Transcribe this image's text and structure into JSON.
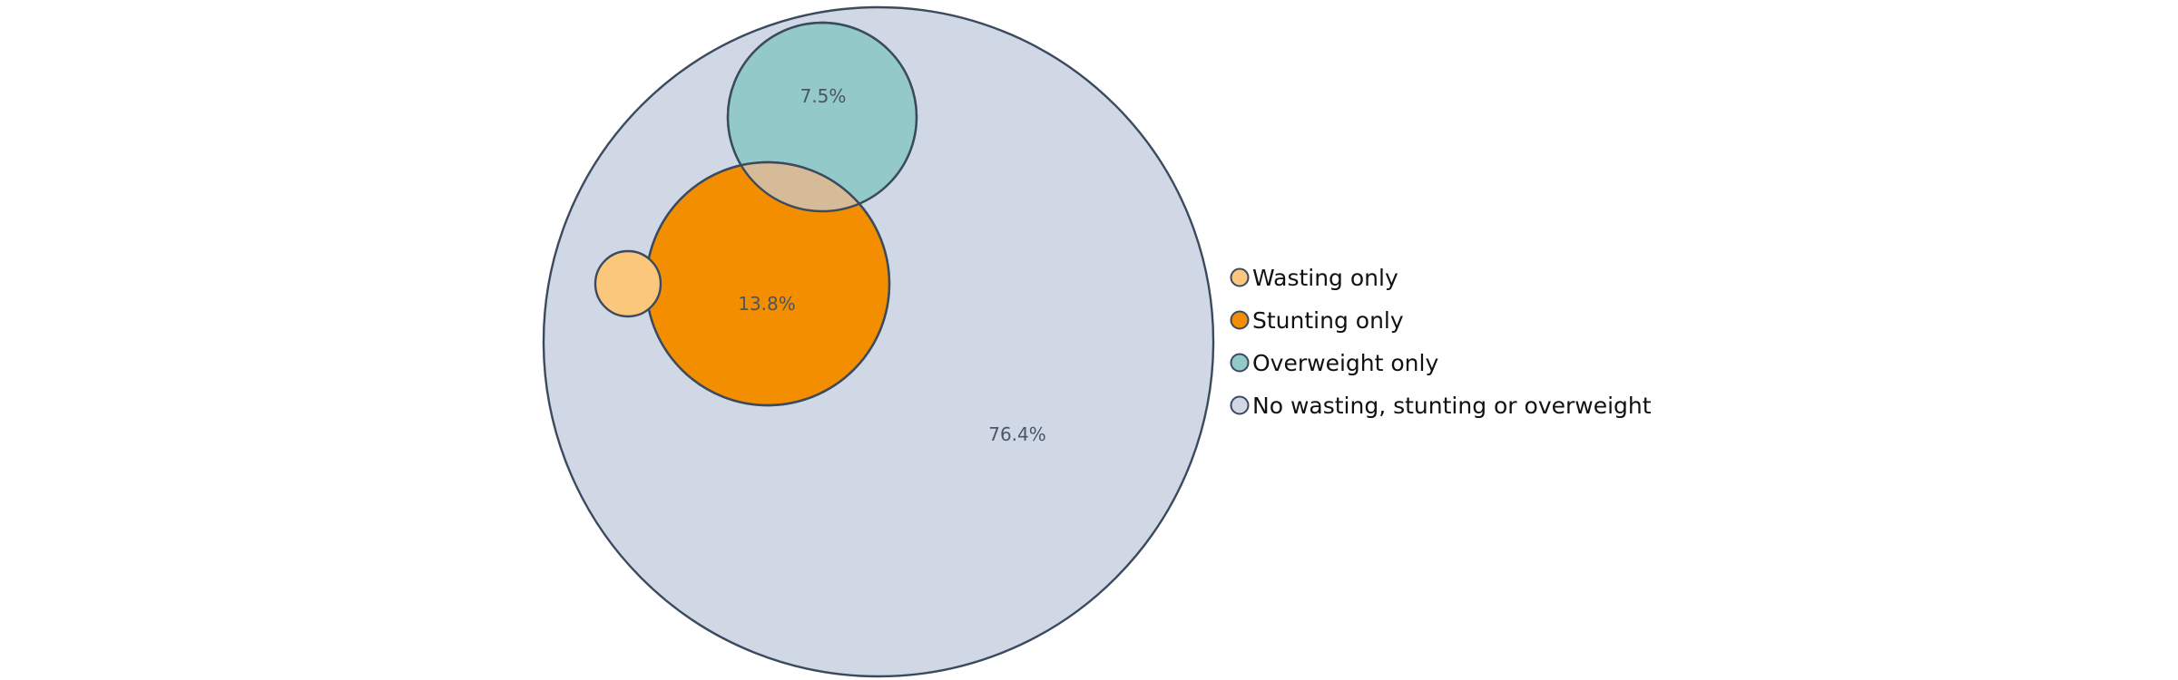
{
  "chart_data": {
    "type": "venn",
    "sets": [
      {
        "name": "No wasting, stunting or overweight",
        "value": 76.4,
        "label": "76.4%",
        "color": "#cfd8e4"
      },
      {
        "name": "Stunting only",
        "value": 13.8,
        "label": "13.8%",
        "color": "#f28e00"
      },
      {
        "name": "Overweight only",
        "value": 7.5,
        "label": "7.5%",
        "color": "#93c9c8"
      },
      {
        "name": "Wasting only",
        "value": null,
        "label": "",
        "color": "#fbc77c"
      }
    ],
    "overlap_color": "#d6bb98",
    "legend": {
      "placement": "right",
      "entries": [
        {
          "label": "Wasting only",
          "color": "#fbc77c"
        },
        {
          "label": "Stunting only",
          "color": "#f28e00"
        },
        {
          "label": "Overweight only",
          "color": "#93c9c8"
        },
        {
          "label": "No wasting, stunting or overweight",
          "color": "#cfd8e4"
        }
      ]
    },
    "edge_color": "#3b4a5e"
  }
}
